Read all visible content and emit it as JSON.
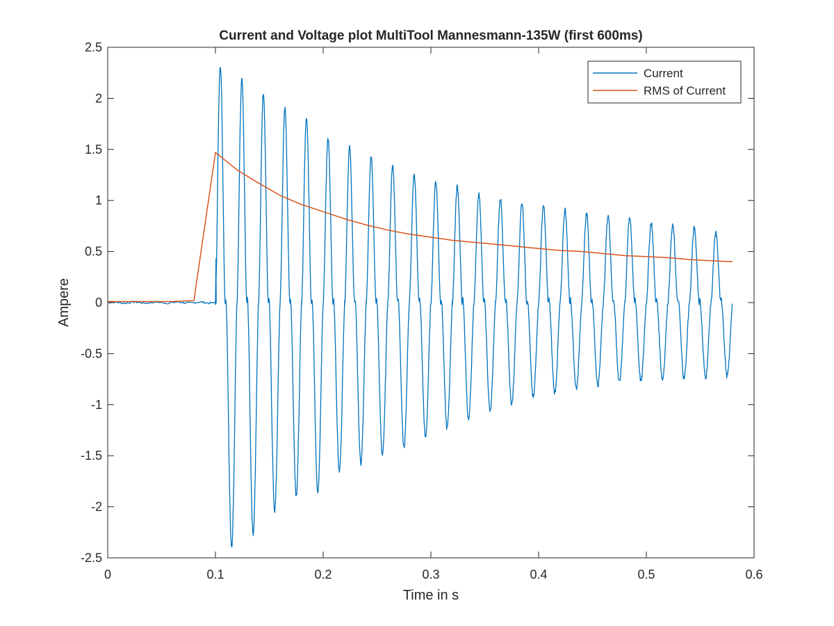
{
  "chart_data": {
    "type": "line",
    "title": "Current and Voltage plot MultiTool Mannesmann-135W (first 600ms)",
    "xlabel": "Time in s",
    "ylabel": "Ampere",
    "xlim": [
      0,
      0.6
    ],
    "ylim": [
      -2.5,
      2.5
    ],
    "xticks": [
      "0",
      "0.1",
      "0.2",
      "0.3",
      "0.4",
      "0.5",
      "0.6"
    ],
    "yticks": [
      "-2.5",
      "-2",
      "-1.5",
      "-1",
      "-0.5",
      "0",
      "0.5",
      "1",
      "1.5",
      "2",
      "2.5"
    ],
    "grid": false,
    "legend_position": "top-right",
    "colors": {
      "current": "#0072BD",
      "rms": "#D95319",
      "axes": "#262626"
    },
    "series": [
      {
        "name": "Current",
        "sampling": "50 Hz inrush waveform; cycle peaks (positive, negative) listed per 20 ms cycle starting at t = 0.1 s, baseline ≈ 0 before",
        "cycle_start": 0.1,
        "cycle_period": 0.02,
        "positive_peaks": [
          2.33,
          2.18,
          2.05,
          1.9,
          1.82,
          1.6,
          1.52,
          1.44,
          1.34,
          1.25,
          1.19,
          1.14,
          1.07,
          1.02,
          0.98,
          0.95,
          0.91,
          0.87,
          0.85,
          0.84,
          0.78,
          0.75,
          0.73,
          0.68
        ],
        "negative_peaks": [
          -2.4,
          -2.26,
          -2.04,
          -1.88,
          -1.86,
          -1.65,
          -1.58,
          -1.5,
          -1.42,
          -1.32,
          -1.23,
          -1.15,
          -1.07,
          -1.0,
          -0.93,
          -0.88,
          -0.84,
          -0.81,
          -0.78,
          -0.77,
          -0.75,
          -0.74,
          -0.73,
          -0.72
        ]
      },
      {
        "name": "RMS of Current",
        "x": [
          0,
          0.02,
          0.04,
          0.06,
          0.08,
          0.1,
          0.12,
          0.14,
          0.16,
          0.18,
          0.2,
          0.22,
          0.24,
          0.26,
          0.28,
          0.3,
          0.32,
          0.34,
          0.36,
          0.38,
          0.4,
          0.42,
          0.44,
          0.46,
          0.48,
          0.5,
          0.52,
          0.54,
          0.56,
          0.58
        ],
        "y": [
          0.01,
          0.01,
          0.01,
          0.01,
          0.02,
          1.47,
          1.3,
          1.17,
          1.05,
          0.96,
          0.89,
          0.82,
          0.76,
          0.71,
          0.67,
          0.64,
          0.61,
          0.59,
          0.57,
          0.55,
          0.53,
          0.51,
          0.5,
          0.48,
          0.46,
          0.45,
          0.44,
          0.42,
          0.41,
          0.4
        ]
      }
    ]
  }
}
